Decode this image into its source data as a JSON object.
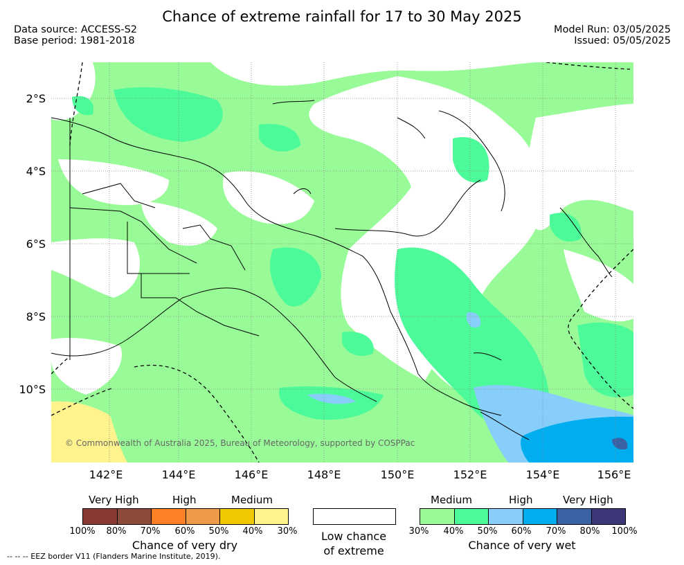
{
  "title": "Chance of extreme rainfall for 17 to 30 May 2025",
  "data_source": "Data source: ACCESS-S2",
  "base_period": "Base period: 1981-2018",
  "model_run": "Model Run: 03/05/2025",
  "issued": "Issued: 05/05/2025",
  "lat_labels": [
    "2°S",
    "4°S",
    "6°S",
    "8°S",
    "10°S"
  ],
  "lon_labels": [
    "142°E",
    "144°E",
    "146°E",
    "148°E",
    "150°E",
    "152°E",
    "154°E",
    "156°E"
  ],
  "copyright": "© Commonwealth of Australia 2025, Bureau of Meteorology, supported by COSPPac",
  "legend_dry": {
    "levels": [
      "Very High",
      "High",
      "Medium"
    ],
    "ticks": [
      "100%",
      "80%",
      "70%",
      "60%",
      "50%",
      "40%",
      "30%"
    ],
    "colors": [
      "#8b3a32",
      "#8b4a3a",
      "#ff7f27",
      "#ef9a48",
      "#f0c800",
      "#fff38e"
    ],
    "caption": "Chance of very dry"
  },
  "legend_low": {
    "caption_line1": "Low chance",
    "caption_line2": "of extreme"
  },
  "legend_wet": {
    "levels": [
      "Medium",
      "High",
      "Very High"
    ],
    "ticks": [
      "30%",
      "40%",
      "50%",
      "60%",
      "70%",
      "80%",
      "100%"
    ],
    "colors": [
      "#98fb98",
      "#4dfa9a",
      "#87cefa",
      "#00aeef",
      "#3a63a6",
      "#3c3878"
    ],
    "caption": "Chance of very wet"
  },
  "footnote": "-- -- -- EEZ border V11 (Flanders Marine Institute, 2019)."
}
